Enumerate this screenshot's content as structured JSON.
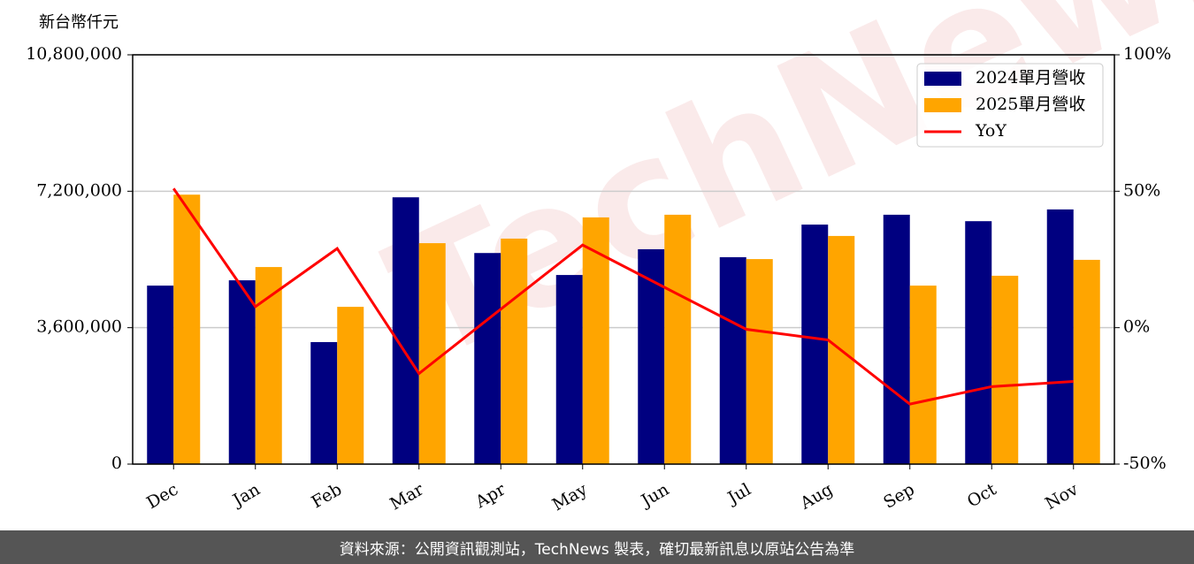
{
  "chart_data": {
    "type": "bar",
    "y_label": "新台幣仟元",
    "watermark": "TechNews",
    "categories": [
      "Dec",
      "Jan",
      "Feb",
      "Mar",
      "Apr",
      "May",
      "Jun",
      "Jul",
      "Aug",
      "Sep",
      "Oct",
      "Nov"
    ],
    "series": [
      {
        "name": "2024單月營收",
        "color": "#000080",
        "values": [
          4710000,
          4850000,
          3220000,
          7040000,
          5570000,
          4990000,
          5670000,
          5460000,
          6320000,
          6580000,
          6410000,
          6720000
        ]
      },
      {
        "name": "2025單月營收",
        "color": "#FFA500",
        "values": [
          7110000,
          5200000,
          4150000,
          5830000,
          5950000,
          6510000,
          6580000,
          5410000,
          6020000,
          4710000,
          4970000,
          5390000
        ]
      },
      {
        "name": "YoY",
        "color": "#FF0000",
        "axis": "y2",
        "type": "line",
        "values": [
          51,
          7.7,
          29,
          -16.8,
          6.8,
          30.3,
          14.8,
          -0.6,
          -4.5,
          -28,
          -21.6,
          -19.7
        ]
      }
    ],
    "ylim": [
      0,
      10800000
    ],
    "yticks": [
      0,
      {
        "value": 3600000,
        "label": "3,600,000"
      },
      {
        "value": 7200000,
        "label": "7,200,000"
      },
      {
        "value": 10800000,
        "label": "10,800,000"
      }
    ],
    "y2lim": [
      -50,
      100
    ],
    "y2ticks": [
      {
        "value": -50,
        "label": "-50%"
      },
      {
        "value": 0,
        "label": "0%"
      },
      {
        "value": 50,
        "label": "50%"
      },
      {
        "value": 100,
        "label": "100%"
      }
    ],
    "grid": true,
    "legend": "upper right"
  },
  "footer": "資料來源：公開資訊觀測站，TechNews 製表，確切最新訊息以原站公告為準"
}
